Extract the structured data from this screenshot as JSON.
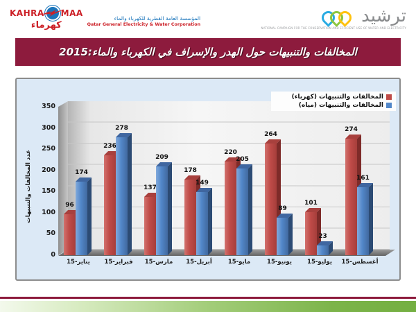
{
  "header": {
    "kahramaa": {
      "kahra": "KAHRA",
      "maa": "MAA",
      "arabic_name": "كهرماء",
      "org_ar": "المؤسسة العامة القطرية للكهرباء والماء",
      "org_en": "Qatar General Electricity & Water Corporation"
    },
    "tarsheed": {
      "wordmark": "ترشيد",
      "tagline_en": "NATIONAL CAMPAIGN FOR THE CONSERVATION AND EFFICIENT USE OF WATER AND ELECTRICITY"
    }
  },
  "title_bar": {
    "text": "المخالفات والتنبيهات حول الهدر والإسراف في الكهرباء والماء:2015"
  },
  "chart_data": {
    "type": "bar",
    "title": "",
    "categories": [
      "يناير-15",
      "فبراير-15",
      "مارس-15",
      "أبريل-15",
      "مايو-15",
      "يونيو-15",
      "يوليو-15",
      "أغسطس-15"
    ],
    "series": [
      {
        "name": "المخالفات والتنبيهات (كهرباء)",
        "color": "#bf4b48",
        "values": [
          96,
          236,
          137,
          178,
          220,
          264,
          101,
          274
        ]
      },
      {
        "name": "المخالفات والتنبيهات (مياه)",
        "color": "#5287c9",
        "values": [
          174,
          278,
          209,
          149,
          205,
          89,
          23,
          161
        ]
      }
    ],
    "ylabel": "عدد المخالفات والتنبيهات",
    "ylim": [
      0,
      350
    ],
    "yticks": [
      0,
      50,
      100,
      150,
      200,
      250,
      300,
      350
    ],
    "grid": true,
    "legend_position": "top-right",
    "style": "3d-clustered-column"
  },
  "colors": {
    "maroon": "#8d1b3d",
    "footer_green": "#74af41",
    "panel_bg": "#dce9f6",
    "bar_electricity": "#bf4b48",
    "bar_water": "#5287c9",
    "kahramaa_red": "#cc2027",
    "kahramaa_blue": "#1b75bb",
    "tarsheed_gray": "#8a8c8e",
    "tarsheed_blue": "#29abe2",
    "tarsheed_green": "#8dc63f",
    "tarsheed_yellow": "#ffc20e"
  }
}
